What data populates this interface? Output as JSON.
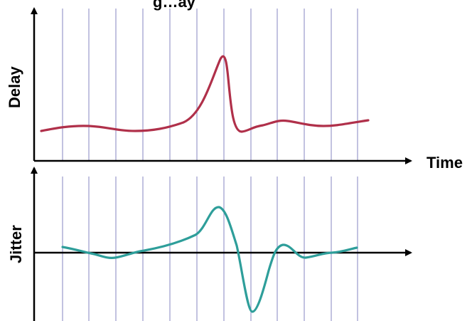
{
  "labels": {
    "title_partial": "g…ay",
    "delay_axis": "Delay",
    "time_axis": "Time",
    "jitter_axis": "Jitter"
  },
  "colors": {
    "delay_curve": "#b0304a",
    "jitter_curve": "#2e9e9a",
    "grid_lines": "#9999cc",
    "axes": "#000000"
  },
  "chart_data": [
    {
      "type": "line",
      "name": "delay",
      "note_units": "arbitrary (no numeric ticks shown)",
      "x": [
        0,
        1,
        2,
        3,
        4,
        5,
        6,
        7,
        8,
        9,
        10,
        11,
        12
      ],
      "values": [
        0.2,
        0.3,
        0.25,
        0.25,
        0.3,
        0.5,
        2.1,
        0.15,
        0.35,
        0.3,
        0.3,
        0.35,
        0.45
      ],
      "gridlines_x": 12
    },
    {
      "type": "line",
      "name": "jitter",
      "note_units": "arbitrary (no numeric ticks shown)",
      "x": [
        0,
        1,
        2,
        3,
        4,
        5,
        6,
        7,
        8,
        9,
        10,
        11,
        12
      ],
      "values": [
        0.1,
        0.0,
        -0.1,
        0.0,
        0.1,
        0.4,
        0.9,
        -1.1,
        0.15,
        -0.1,
        0.0,
        0.05,
        0.1
      ],
      "gridlines_x": 12
    }
  ]
}
